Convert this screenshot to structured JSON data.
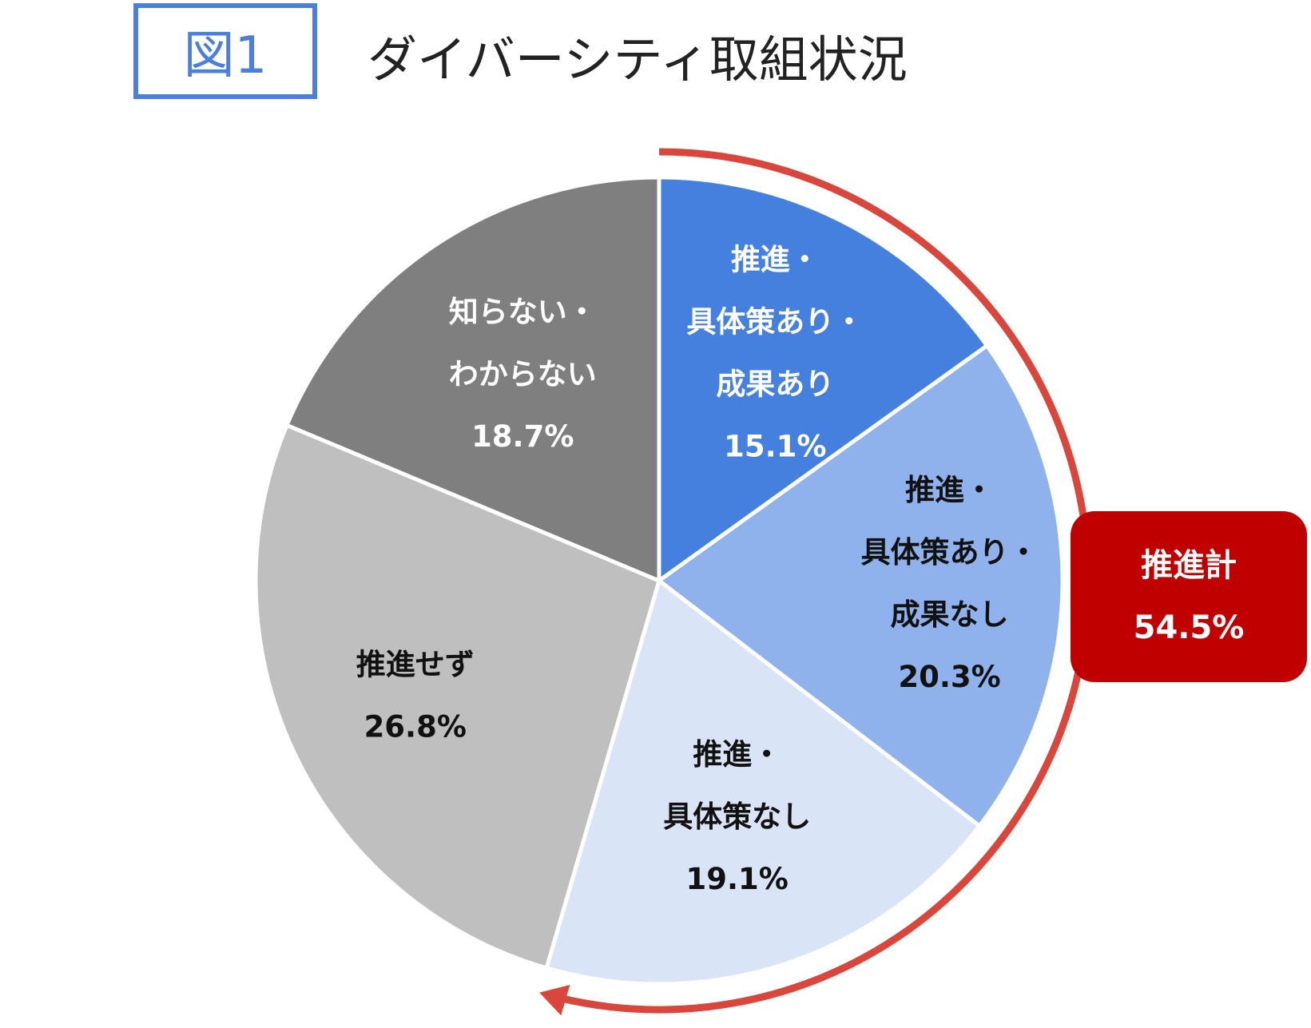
{
  "figure_label": "図1",
  "chart_data": {
    "type": "pie",
    "title": "ダイバーシティ取組状況",
    "start_angle_deg": 0,
    "direction": "clockwise",
    "slices": [
      {
        "label_lines": [
          "推進・",
          "具体策あり・",
          "成果あり"
        ],
        "value": 15.1,
        "value_label": "15.1%",
        "color": "#4680de",
        "text_color": "#ffffff"
      },
      {
        "label_lines": [
          "推進・",
          "具体策あり・",
          "成果なし"
        ],
        "value": 20.3,
        "value_label": "20.3%",
        "color": "#90b2ec",
        "text_color": "#111111"
      },
      {
        "label_lines": [
          "推進・",
          "具体策なし"
        ],
        "value": 19.1,
        "value_label": "19.1%",
        "color": "#dae4f7",
        "text_color": "#111111"
      },
      {
        "label_lines": [
          "推進せず"
        ],
        "value": 26.8,
        "value_label": "26.8%",
        "color": "#bfbfbf",
        "text_color": "#111111"
      },
      {
        "label_lines": [
          "知らない・",
          "わからない"
        ],
        "value": 18.7,
        "value_label": "18.7%",
        "color": "#7f7f7f",
        "text_color": "#ffffff"
      }
    ],
    "total_callout": {
      "label": "推進計",
      "value": 54.5,
      "value_label": "54.5%",
      "color": "#c00000",
      "arc_color": "#d9463c"
    }
  }
}
